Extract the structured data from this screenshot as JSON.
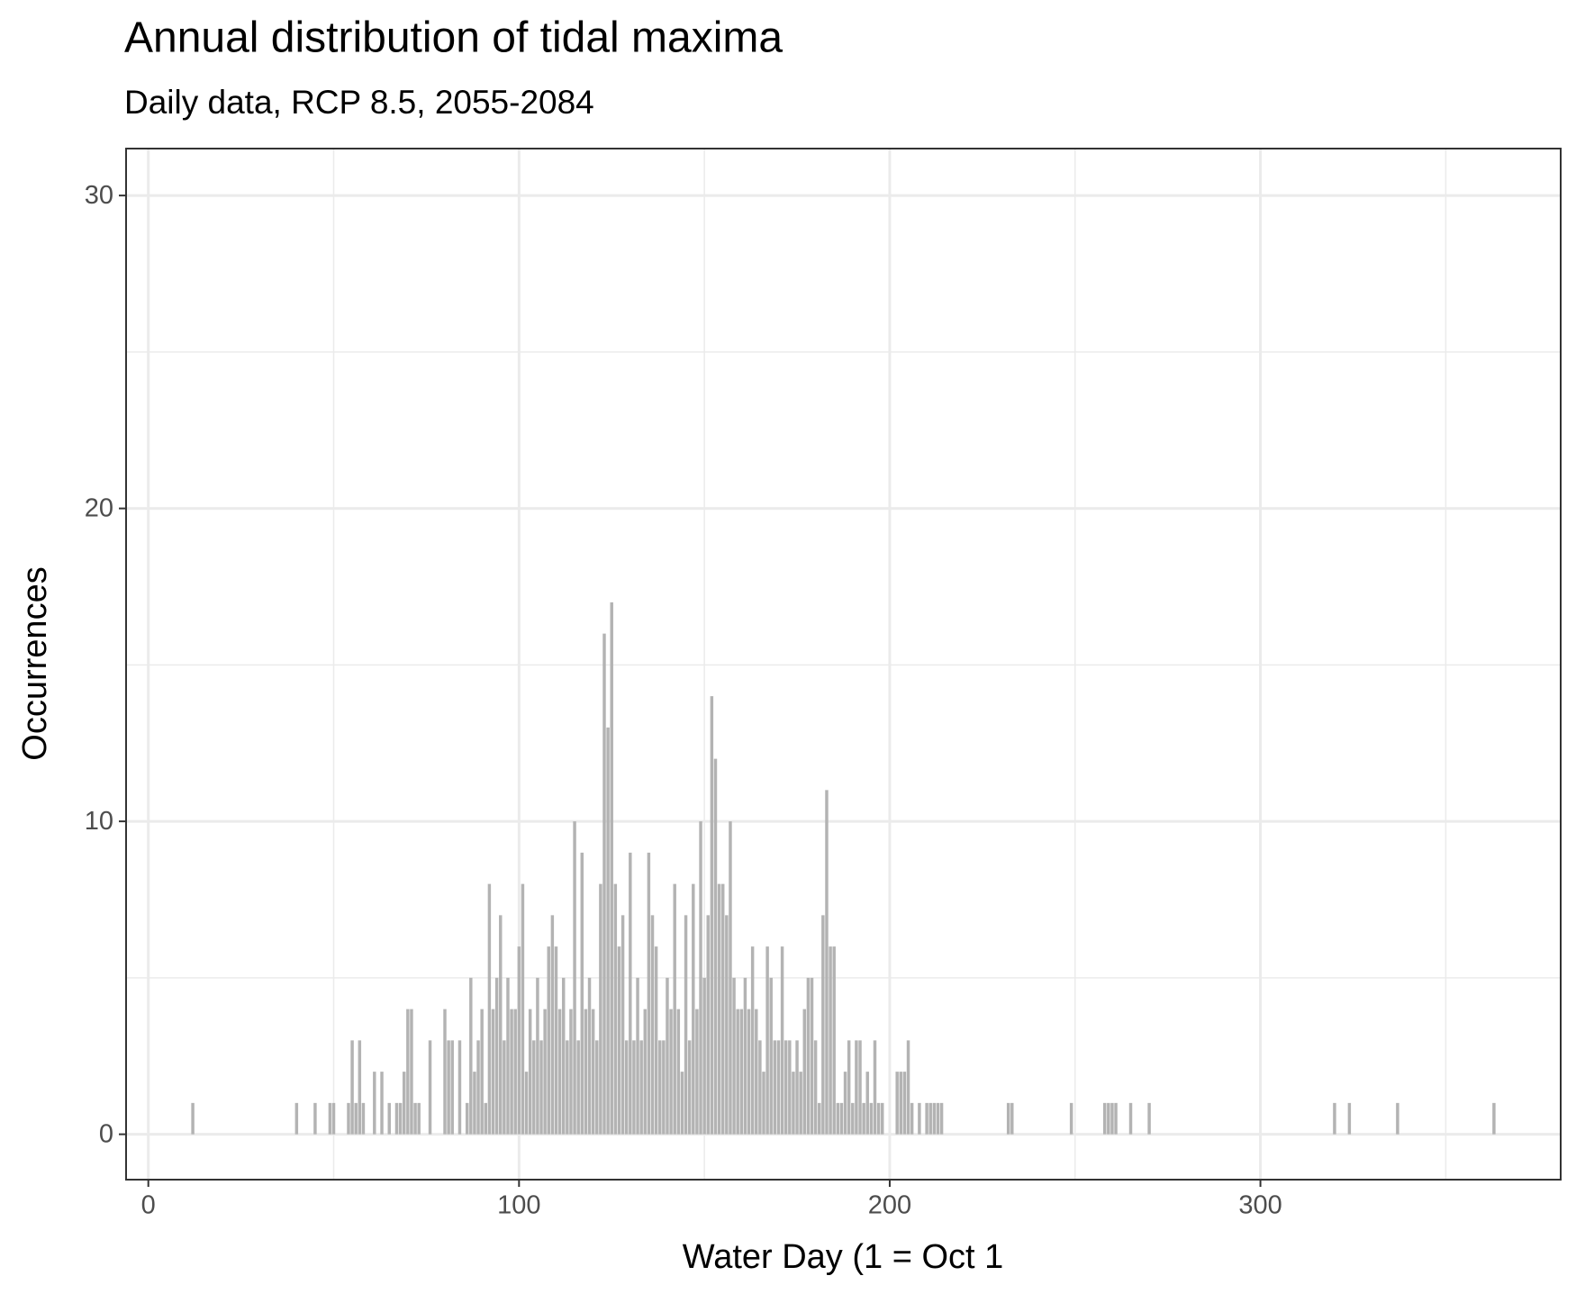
{
  "chart_data": {
    "type": "histogram",
    "title": "Annual distribution of tidal maxima",
    "subtitle": "Daily data, RCP 8.5, 2055-2084",
    "x_label": "Water Day (1 = Oct 1",
    "y_label": "Occurrences",
    "color": "#b3b3b3",
    "grid": true,
    "xlim": [
      -6,
      381
    ],
    "ylim": [
      -1.45,
      31.5
    ],
    "xticks": [
      0,
      100,
      200,
      300
    ],
    "yticks": [
      0,
      10,
      20,
      30
    ],
    "xminor": [
      50,
      150,
      250,
      350
    ],
    "yminor": [
      5,
      15,
      25
    ],
    "x": [
      12,
      40,
      45,
      49,
      50,
      54,
      55,
      56,
      57,
      58,
      61,
      63,
      65,
      67,
      68,
      69,
      70,
      71,
      72,
      73,
      76,
      80,
      81,
      82,
      84,
      86,
      87,
      88,
      89,
      90,
      91,
      92,
      93,
      94,
      95,
      96,
      97,
      98,
      99,
      100,
      101,
      102,
      103,
      104,
      105,
      106,
      107,
      108,
      109,
      110,
      111,
      112,
      113,
      114,
      115,
      116,
      117,
      118,
      119,
      120,
      121,
      122,
      123,
      124,
      125,
      126,
      127,
      128,
      129,
      130,
      131,
      132,
      133,
      134,
      135,
      136,
      137,
      138,
      139,
      140,
      141,
      142,
      143,
      144,
      145,
      146,
      147,
      148,
      149,
      150,
      151,
      152,
      153,
      154,
      155,
      156,
      157,
      158,
      159,
      160,
      161,
      162,
      163,
      164,
      165,
      166,
      167,
      168,
      169,
      170,
      171,
      172,
      173,
      174,
      175,
      176,
      177,
      178,
      179,
      180,
      181,
      182,
      183,
      184,
      185,
      186,
      187,
      188,
      189,
      190,
      191,
      192,
      193,
      194,
      195,
      196,
      197,
      198,
      202,
      203,
      204,
      205,
      206,
      208,
      210,
      211,
      212,
      213,
      214,
      232,
      233,
      249,
      258,
      259,
      260,
      261,
      265,
      270,
      320,
      324,
      337,
      363
    ],
    "values": [
      1,
      1,
      1,
      1,
      1,
      1,
      3,
      1,
      3,
      1,
      2,
      2,
      1,
      1,
      1,
      2,
      4,
      4,
      1,
      1,
      3,
      4,
      3,
      3,
      3,
      1,
      5,
      2,
      3,
      4,
      1,
      8,
      4,
      5,
      7,
      3,
      5,
      4,
      4,
      6,
      8,
      2,
      4,
      3,
      5,
      3,
      4,
      6,
      7,
      6,
      4,
      5,
      3,
      4,
      10,
      3,
      9,
      4,
      5,
      4,
      3,
      8,
      16,
      13,
      17,
      8,
      6,
      7,
      3,
      9,
      3,
      5,
      3,
      4,
      9,
      7,
      6,
      3,
      3,
      5,
      4,
      8,
      4,
      2,
      7,
      3,
      8,
      4,
      10,
      5,
      7,
      14,
      12,
      8,
      8,
      7,
      10,
      5,
      4,
      4,
      5,
      4,
      6,
      4,
      3,
      2,
      6,
      5,
      3,
      3,
      6,
      3,
      3,
      2,
      3,
      2,
      4,
      5,
      5,
      3,
      1,
      7,
      11,
      6,
      6,
      1,
      1,
      2,
      3,
      1,
      3,
      3,
      1,
      2,
      1,
      3,
      1,
      1,
      2,
      2,
      2,
      3,
      1,
      1,
      1,
      1,
      1,
      1,
      1,
      1,
      1,
      1,
      1,
      1,
      1,
      1,
      1,
      1,
      1,
      1,
      1,
      1
    ]
  }
}
